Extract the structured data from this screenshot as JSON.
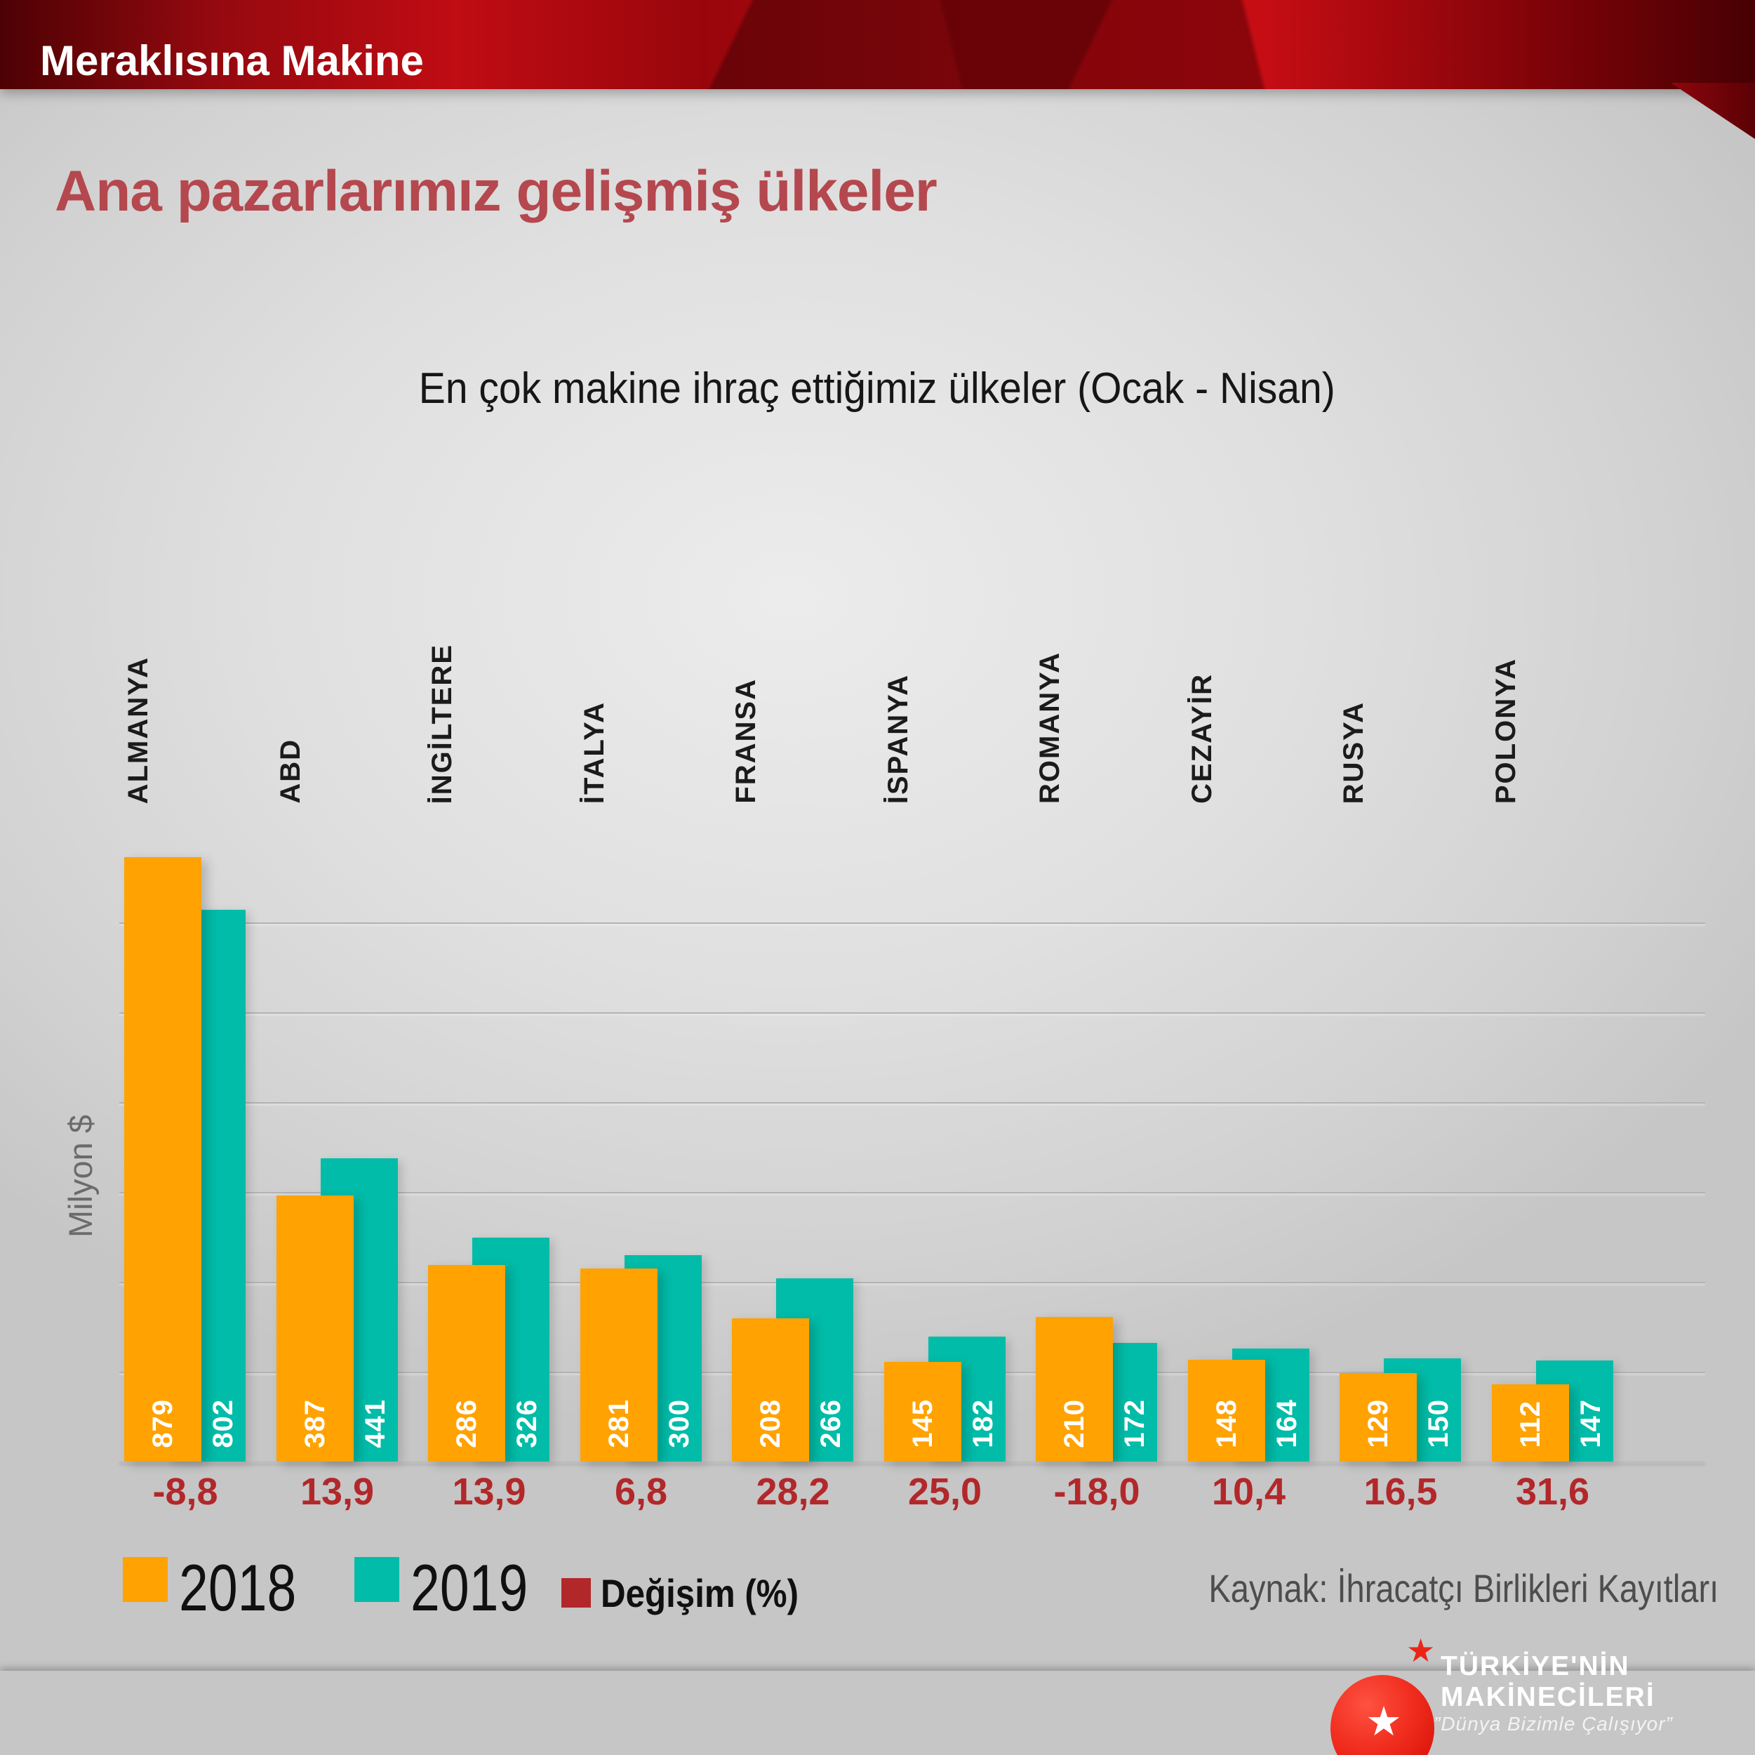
{
  "banner": {
    "title": "Meraklısına Makine"
  },
  "page_title": "Ana pazarlarımız gelişmiş ülkeler",
  "chart_title": "En çok makine ihraç ettiğimiz ülkeler (Ocak - Nisan)",
  "y_axis_label": "Milyon $",
  "source": "Kaynak: İhracatçı Birlikleri Kayıtları",
  "legend": {
    "items": [
      {
        "label": "2018",
        "color": "#FFA202"
      },
      {
        "label": "2019",
        "color": "#00BCA8"
      },
      {
        "label": "Değişim (%)",
        "color": "#B2282A"
      }
    ]
  },
  "logo": {
    "line1": "TÜRKİYE'NİN",
    "line2": "MAKİNECİLERİ",
    "motto": "”Dünya Bizimle Çalışıyor”"
  },
  "colors": {
    "bar_2018": "#FFA202",
    "bar_2019": "#00BCA8",
    "change_text": "#B2282A",
    "title_red": "#B4484E",
    "background_gray": "#DEDEDE",
    "band_red": "#C00C13",
    "banner_dark": "#1A0203"
  },
  "chart_data": {
    "type": "bar",
    "title": "En çok makine ihraç ettiğimiz ülkeler (Ocak - Nisan)",
    "categories": [
      "ALMANYA",
      "ABD",
      "İNGİLTERE",
      "İTALYA",
      "FRANSA",
      "İSPANYA",
      "ROMANYA",
      "CEZAYİR",
      "RUSYA",
      "POLONYA"
    ],
    "series": [
      {
        "name": "2018",
        "color": "#FFA202",
        "values": [
          879,
          387,
          286,
          281,
          208,
          145,
          210,
          148,
          129,
          112
        ]
      },
      {
        "name": "2019",
        "color": "#00BCA8",
        "values": [
          802,
          441,
          326,
          300,
          266,
          182,
          172,
          164,
          150,
          147
        ]
      }
    ],
    "change_series": {
      "name": "Değişim (%)",
      "color": "#B2282A",
      "values": [
        "-8,8",
        "13,9",
        "13,9",
        "6,8",
        "28,2",
        "25,0",
        "-18,0",
        "10,4",
        "16,5",
        "31,6"
      ]
    },
    "xlabel": "",
    "ylabel": "Milyon $",
    "ylim": [
      0,
      900
    ],
    "grid": "horizontal",
    "legend_position": "bottom-left",
    "value_labels": "inside-bar-bottom, rotated 90deg",
    "unit": "Milyon $"
  }
}
